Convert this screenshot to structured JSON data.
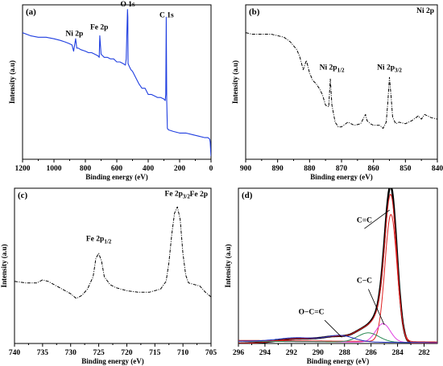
{
  "chart_data": [
    {
      "type": "line",
      "panel_label": "(a)",
      "xlabel": "Binding energy (eV)",
      "ylabel": "Intensity (a.u)",
      "xlim": [
        1200,
        0
      ],
      "ylim": [
        0,
        100
      ],
      "x_reversed": true,
      "xticks": [
        1200,
        1000,
        800,
        600,
        400,
        200,
        0
      ],
      "line_color": "#1f3ee0",
      "line_style": "solid",
      "series": [
        {
          "x": [
            1200,
            1150,
            1100,
            1050,
            1000,
            960,
            930,
            905,
            885,
            875,
            862,
            855,
            845,
            830,
            800,
            780,
            760,
            740,
            720,
            712,
            708,
            700,
            690,
            680,
            660,
            640,
            620,
            600,
            580,
            560,
            545,
            540,
            532,
            530,
            528,
            520,
            510,
            500,
            480,
            460,
            440,
            420,
            400,
            380,
            360,
            340,
            320,
            300,
            292,
            288,
            285,
            282,
            278,
            270,
            240,
            200,
            160,
            120,
            80,
            40,
            20,
            8,
            5,
            2,
            0
          ],
          "y": [
            82,
            80,
            79,
            79,
            78,
            77,
            76,
            75,
            74,
            70,
            78,
            72,
            72,
            71,
            70,
            69,
            69,
            68,
            67,
            66,
            80,
            68,
            67,
            66,
            66,
            65,
            65,
            63,
            63,
            62,
            61,
            65,
            97,
            92,
            62,
            60,
            58,
            57,
            53,
            49,
            46,
            46,
            42,
            42,
            41,
            40,
            40,
            39,
            38,
            42,
            92,
            38,
            20,
            19,
            18,
            17,
            17,
            16,
            15,
            14,
            14,
            13,
            11,
            5,
            2
          ]
        }
      ],
      "annotations": [
        {
          "text": "Ni 2p",
          "x": 870,
          "y": 80
        },
        {
          "text": "Fe 2p",
          "x": 712,
          "y": 84
        },
        {
          "text": "O 1s",
          "x": 530,
          "y": 99
        },
        {
          "text": "C 1s",
          "x": 283,
          "y": 92
        }
      ]
    },
    {
      "type": "line",
      "panel_label": "(b)",
      "title": "Ni 2p",
      "xlabel": "Binding energy (eV)",
      "ylabel": "Intensity (a.u)",
      "xlim": [
        900,
        840
      ],
      "ylim": [
        0,
        100
      ],
      "x_reversed": true,
      "xticks": [
        900,
        890,
        880,
        870,
        860,
        850,
        840
      ],
      "line_color": "#000000",
      "line_style": "dash-dot",
      "series": [
        {
          "x": [
            900,
            898,
            896,
            894,
            892,
            890,
            888,
            886,
            884,
            883,
            882,
            881,
            880,
            879,
            878,
            877,
            876,
            875,
            874,
            873.5,
            873,
            872,
            871,
            870,
            868,
            866,
            864,
            862.5,
            862,
            861,
            860,
            858,
            857,
            856,
            855.5,
            855,
            854.5,
            854,
            853,
            852,
            850,
            848,
            846,
            845,
            844,
            842,
            840
          ],
          "y": [
            82,
            81,
            81,
            81,
            81,
            80,
            79,
            76,
            71,
            66,
            58,
            64,
            56,
            51,
            49,
            46,
            42,
            35,
            34,
            52,
            35,
            24,
            21,
            21,
            24,
            22,
            23,
            29,
            25,
            23,
            22,
            22,
            20,
            24,
            37,
            53,
            41,
            27,
            23,
            24,
            23,
            25,
            28,
            26,
            29,
            27,
            26
          ]
        }
      ],
      "annotations": [
        {
          "text": "Ni 2p",
          "sub": "1/2",
          "x": 873,
          "y": 58
        },
        {
          "text": "Ni 2p",
          "sub": "3/2",
          "x": 855,
          "y": 58
        }
      ]
    },
    {
      "type": "line",
      "panel_label": "(c)",
      "title": "Fe 2p",
      "xlabel": "Binding energy (eV)",
      "ylabel": "Intensity (a.u)",
      "xlim": [
        740,
        705
      ],
      "ylim": [
        0,
        100
      ],
      "x_reversed": true,
      "xticks": [
        740,
        735,
        730,
        725,
        720,
        715,
        710,
        705
      ],
      "line_color": "#000000",
      "line_style": "dash-dot",
      "series": [
        {
          "x": [
            740,
            738,
            736,
            735,
            734,
            732,
            730,
            729,
            728,
            727,
            726,
            725.5,
            725,
            724.5,
            724,
            723,
            722,
            720,
            718,
            716,
            714,
            713,
            712.5,
            712,
            711.5,
            711,
            710.5,
            710,
            709.5,
            709,
            708,
            707,
            706,
            705
          ],
          "y": [
            40,
            39,
            39,
            41,
            40,
            36,
            32,
            29,
            31,
            35,
            43,
            55,
            58,
            53,
            43,
            38,
            36,
            34,
            33,
            33,
            35,
            40,
            52,
            70,
            84,
            88,
            80,
            58,
            44,
            39,
            38,
            37,
            33,
            30
          ]
        }
      ],
      "annotations": [
        {
          "text": "Fe 2p",
          "sub": "1/2",
          "x": 725,
          "y": 66
        },
        {
          "text": "Fe 2p",
          "sub": "3/2",
          "x": 711,
          "y": 95
        }
      ]
    },
    {
      "type": "line",
      "panel_label": "(d)",
      "xlabel": "Binding energy (eV)",
      "ylabel": "Intensity (a.u)",
      "xlim": [
        296,
        281
      ],
      "ylim": [
        0,
        100
      ],
      "x_reversed": true,
      "xticks": [
        296,
        294,
        292,
        290,
        288,
        286,
        284,
        282
      ],
      "series": [
        {
          "color": "#000000",
          "width": 2.4,
          "peaks": [
            [
              284.5,
              95,
              0.45
            ],
            [
              285.3,
              15,
              0.6
            ],
            [
              286.5,
              8,
              0.75
            ],
            [
              288.5,
              4,
              1.1
            ],
            [
              291.5,
              3,
              1.6
            ]
          ],
          "baseline": [
            0,
            0
          ]
        },
        {
          "color": "#e02020",
          "width": 1.0,
          "peaks": [
            [
              284.5,
              90,
              0.45
            ],
            [
              285.3,
              14,
              0.6
            ],
            [
              286.5,
              8,
              0.75
            ],
            [
              288.5,
              4,
              1.1
            ],
            [
              291.5,
              3,
              1.6
            ]
          ],
          "baseline": [
            0,
            0
          ]
        },
        {
          "color": "#e02020",
          "width": 1.0,
          "peaks": [
            [
              284.5,
              82,
              0.45
            ]
          ],
          "baseline": [
            2,
            1
          ]
        },
        {
          "color": "#e040e0",
          "width": 1.0,
          "peaks": [
            [
              285.1,
              12,
              0.55
            ]
          ],
          "baseline": [
            1.5,
            0.5
          ]
        },
        {
          "color": "#2e8b57",
          "width": 1.0,
          "peaks": [
            [
              286.2,
              6,
              0.8
            ]
          ],
          "baseline": [
            1.5,
            0.5
          ]
        },
        {
          "color": "#2030c0",
          "width": 1.0,
          "peaks": [
            [
              288.3,
              4,
              1.0
            ],
            [
              291.5,
              2.5,
              1.5
            ]
          ],
          "baseline": [
            1.5,
            0.5
          ]
        }
      ],
      "annotations": [
        {
          "text": "C=C",
          "x": 286.5,
          "y": 78
        },
        {
          "text": "C−C",
          "x": 286.5,
          "y": 39
        },
        {
          "text": "O−C=C",
          "x": 290.5,
          "y": 19
        }
      ]
    }
  ]
}
